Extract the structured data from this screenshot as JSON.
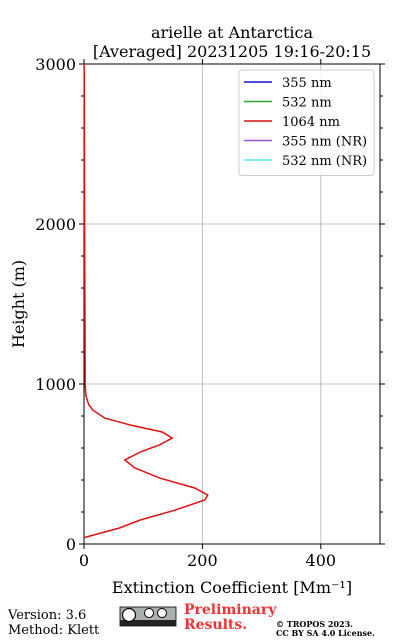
{
  "chart_data": {
    "type": "line",
    "title": "arielle at Antarctica",
    "subtitle": "[Averaged] 20231205 19:16-20:15",
    "xlabel": "Extinction Coefficient [Mm⁻¹]",
    "ylabel": "Height (m)",
    "xlim": [
      0,
      500
    ],
    "ylim": [
      0,
      3000
    ],
    "xticks": [
      0,
      200,
      400
    ],
    "yticks": [
      0,
      1000,
      2000,
      3000
    ],
    "grid": true,
    "legend": "upper right",
    "y": [
      40,
      100,
      150,
      212,
      275,
      306,
      350,
      412,
      475,
      525,
      575,
      620,
      662,
      700,
      744,
      787,
      837,
      870,
      930,
      1000,
      2000,
      2950,
      3000
    ],
    "series": [
      {
        "name": "355 nm",
        "color": "#1010cc",
        "values": [
          null,
          null,
          null,
          null,
          null,
          null,
          null,
          null,
          null,
          null,
          null,
          null,
          null,
          null,
          null,
          null,
          null,
          null,
          null,
          null,
          null,
          null,
          null
        ]
      },
      {
        "name": "532 nm",
        "color": "#22aa22",
        "values": [
          null,
          null,
          null,
          null,
          null,
          null,
          null,
          null,
          null,
          null,
          null,
          null,
          null,
          null,
          null,
          null,
          null,
          null,
          null,
          null,
          null,
          null,
          null
        ]
      },
      {
        "name": "1064 nm",
        "color": "#dd1111",
        "values": [
          0,
          60,
          95,
          154,
          204,
          209,
          187,
          128,
          86,
          69,
          95,
          128,
          149,
          132,
          78,
          35,
          15,
          8,
          3,
          2,
          1,
          0.5,
          0
        ]
      },
      {
        "name": "355 nm (NR)",
        "color": "#9955dd",
        "values": [
          null,
          null,
          null,
          null,
          null,
          null,
          null,
          null,
          null,
          null,
          null,
          null,
          null,
          null,
          null,
          null,
          null,
          null,
          null,
          null,
          null,
          null,
          null
        ]
      },
      {
        "name": "532 nm (NR)",
        "color": "#55eedd",
        "values": [
          null,
          null,
          null,
          null,
          null,
          null,
          null,
          null,
          null,
          null,
          null,
          null,
          null,
          null,
          null,
          null,
          null,
          null,
          null,
          null,
          null,
          null,
          null
        ]
      }
    ]
  },
  "footer": {
    "version": "Version: 3.6",
    "method": "Method: Klett",
    "preliminary": [
      "Preliminary",
      "Results."
    ],
    "copyright": [
      "© TROPOS 2023.",
      "CC BY SA 4.0 License."
    ]
  }
}
